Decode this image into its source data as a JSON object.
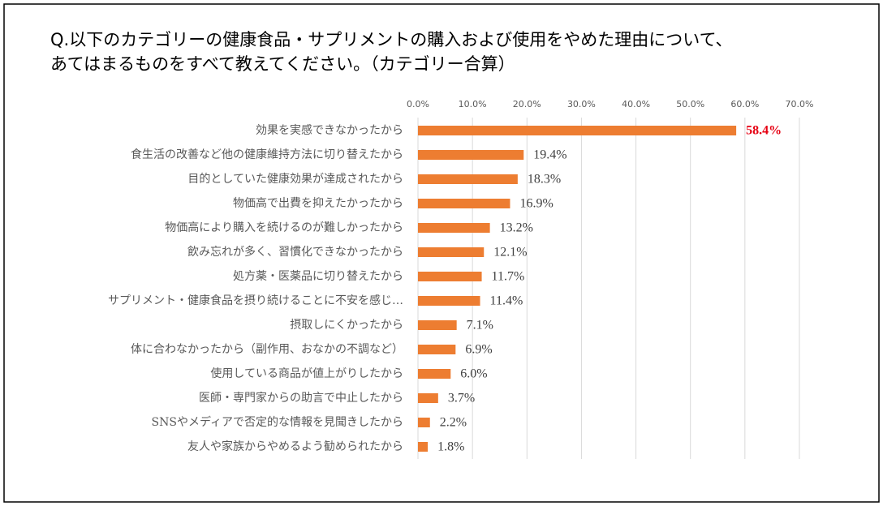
{
  "chart_data": {
    "type": "bar",
    "orientation": "horizontal",
    "title": "Q.以下のカテゴリーの健康食品・サプリメントの購入および使用をやめた理由について、\nあてはまるものをすべて教えてください。（カテゴリー合算）",
    "categories": [
      "効果を実感できなかったから",
      "食生活の改善など他の健康維持方法に切り替えたから",
      "目的としていた健康効果が達成されたから",
      "物価高で出費を抑えたかったから",
      "物価高により購入を続けるのが難しかったから",
      "飲み忘れが多く、習慣化できなかったから",
      "処方薬・医薬品に切り替えたから",
      "サプリメント・健康食品を摂り続けることに不安を感じ…",
      "摂取しにくかったから",
      "体に合わなかったから（副作用、おなかの不調など）",
      "使用している商品が値上がりしたから",
      "医師・専門家からの助言で中止したから",
      "SNSやメディアで否定的な情報を見聞きしたから",
      "友人や家族からやめるよう勧められたから"
    ],
    "values": [
      58.4,
      19.4,
      18.3,
      16.9,
      13.2,
      12.1,
      11.7,
      11.4,
      7.1,
      6.9,
      6.0,
      3.7,
      2.2,
      1.8
    ],
    "value_labels": [
      "58.4%",
      "19.4%",
      "18.3%",
      "16.9%",
      "13.2%",
      "12.1%",
      "11.7%",
      "11.4%",
      "7.1%",
      "6.9%",
      "6.0%",
      "3.7%",
      "2.2%",
      "1.8%"
    ],
    "value_label_colors": [
      "#e60012",
      "#404040",
      "#404040",
      "#404040",
      "#404040",
      "#404040",
      "#404040",
      "#404040",
      "#404040",
      "#404040",
      "#404040",
      "#404040",
      "#404040",
      "#404040"
    ],
    "color": "#ed7d31",
    "xlim": [
      0,
      70
    ],
    "xticks": [
      {
        "value": 0,
        "label": "0.0%"
      },
      {
        "value": 10,
        "label": "10.0%"
      },
      {
        "value": 20,
        "label": "20.0%"
      },
      {
        "value": 30,
        "label": "30.0%"
      },
      {
        "value": 40,
        "label": "40.0%"
      },
      {
        "value": 50,
        "label": "50.0%"
      },
      {
        "value": 60,
        "label": "60.0%"
      },
      {
        "value": 70,
        "label": "70.0%"
      }
    ],
    "grid": true
  }
}
